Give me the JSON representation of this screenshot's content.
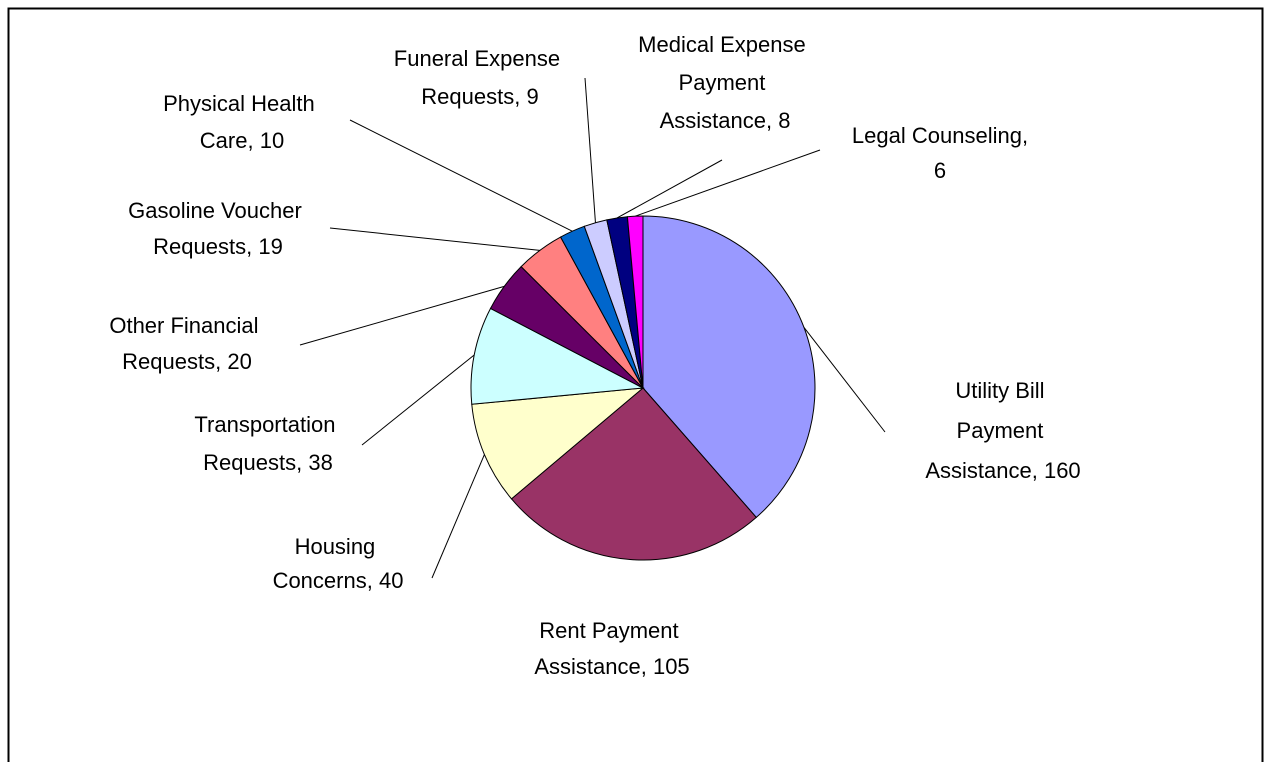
{
  "chart_data": {
    "type": "pie",
    "categories": [
      "Utility Bill Payment Assistance",
      "Rent Payment Assistance",
      "Housing Concerns",
      "Transportation Requests",
      "Other Financial Requests",
      "Gasoline Voucher Requests",
      "Physical Health Care",
      "Funeral Expense Requests",
      "Medical Expense Payment Assistance",
      "Legal Counseling"
    ],
    "values": [
      160,
      105,
      40,
      38,
      20,
      19,
      10,
      9,
      8,
      6
    ],
    "colors": [
      "#9999ff",
      "#993366",
      "#ffffcc",
      "#ccffff",
      "#660066",
      "#ff8080",
      "#0066cc",
      "#ccccff",
      "#000080",
      "#ff00ff"
    ]
  }
}
